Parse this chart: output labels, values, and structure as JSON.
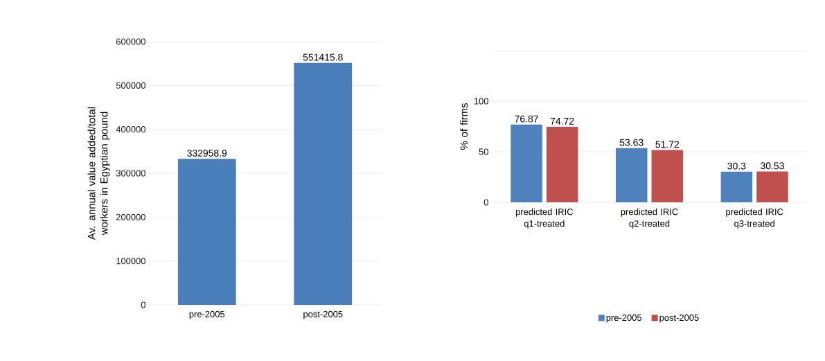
{
  "chart_data": [
    {
      "type": "bar",
      "categories": [
        "pre-2005",
        "post-2005"
      ],
      "values": [
        332958.9,
        551415.8
      ],
      "color": "#4a7ebb",
      "data_labels": true,
      "ylabel": "Av. annual value added/total workers in Egyptian pound",
      "ylim": [
        0,
        600000
      ],
      "yticks": [
        0,
        100000,
        200000,
        300000,
        400000,
        500000,
        600000
      ],
      "grid": "y"
    },
    {
      "type": "bar",
      "categories": [
        "predicted IRIC q1-treated",
        "predicted IRIC q2-treated",
        "predicted IRIC q3-treated"
      ],
      "series": [
        {
          "name": "pre-2005",
          "color": "#4f81bd",
          "values": [
            76.87,
            53.63,
            30.3
          ]
        },
        {
          "name": "post-2005",
          "color": "#c0504d",
          "values": [
            74.72,
            51.72,
            30.53
          ]
        }
      ],
      "data_labels": true,
      "ylabel": "% of firms",
      "ylim": [
        0,
        150
      ],
      "yticks": [
        0,
        50,
        100,
        {
          "value": 150,
          "label": null
        }
      ],
      "grid": "y",
      "legend": "bottom"
    }
  ]
}
